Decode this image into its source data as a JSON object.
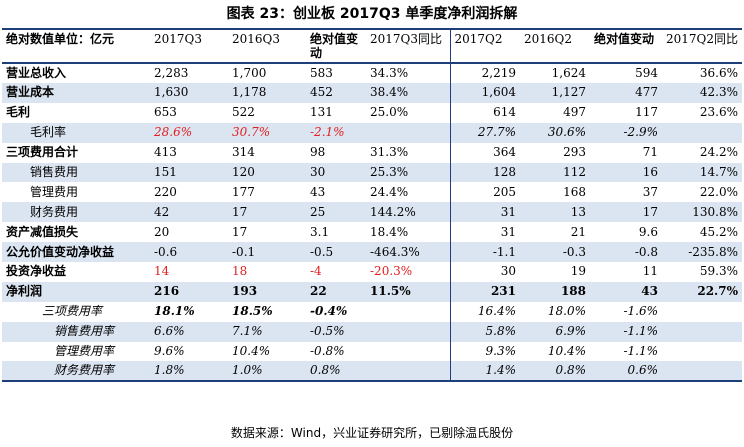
{
  "title": "图表 23：创业板 2017Q3 单季度净利润拆解",
  "headers": [
    "绝对数值单位：亿元",
    "2017Q3",
    "2016Q3",
    "绝对值变动",
    "2017Q3同比",
    "2017Q2",
    "2016Q2",
    "绝对值变动",
    "2017Q2同比"
  ],
  "rows": [
    {
      "label": "营业总收入",
      "cells": [
        "2,283",
        "1,700",
        "583",
        "34.3%",
        "2,219",
        "1,624",
        "594",
        "36.6%"
      ]
    },
    {
      "label": "营业成本",
      "cells": [
        "1,630",
        "1,178",
        "452",
        "38.4%",
        "1,604",
        "1,127",
        "477",
        "42.3%"
      ]
    },
    {
      "label": "毛利",
      "cells": [
        "653",
        "522",
        "131",
        "25.0%",
        "614",
        "497",
        "117",
        "23.6%"
      ]
    },
    {
      "label": "毛利率",
      "cells": [
        "28.6%",
        "30.7%",
        "-2.1%",
        "",
        "27.7%",
        "30.6%",
        "-2.9%",
        ""
      ]
    },
    {
      "label": "三项费用合计",
      "cells": [
        "413",
        "314",
        "98",
        "31.3%",
        "364",
        "293",
        "71",
        "24.2%"
      ]
    },
    {
      "label": "销售费用",
      "cells": [
        "151",
        "120",
        "30",
        "25.3%",
        "128",
        "112",
        "16",
        "14.7%"
      ]
    },
    {
      "label": "管理费用",
      "cells": [
        "220",
        "177",
        "43",
        "24.4%",
        "205",
        "168",
        "37",
        "22.0%"
      ]
    },
    {
      "label": "财务费用",
      "cells": [
        "42",
        "17",
        "25",
        "144.2%",
        "31",
        "13",
        "17",
        "130.8%"
      ]
    },
    {
      "label": "资产减值损失",
      "cells": [
        "20",
        "17",
        "3.1",
        "18.4%",
        "31",
        "21",
        "9.6",
        "45.2%"
      ]
    },
    {
      "label": "公允价值变动净收益",
      "cells": [
        "-0.6",
        "-0.1",
        "-0.5",
        "-464.3%",
        "-1.1",
        "-0.3",
        "-0.8",
        "-235.8%"
      ]
    },
    {
      "label": "投资净收益",
      "cells": [
        "14",
        "18",
        "-4",
        "-20.3%",
        "30",
        "19",
        "11",
        "59.3%"
      ]
    },
    {
      "label": "净利润",
      "cells": [
        "216",
        "193",
        "22",
        "11.5%",
        "231",
        "188",
        "43",
        "22.7%"
      ]
    },
    {
      "label": "三项费用率",
      "cells": [
        "18.1%",
        "18.5%",
        "-0.4%",
        "",
        "16.4%",
        "18.0%",
        "-1.6%",
        ""
      ]
    },
    {
      "label": "销售费用率",
      "cells": [
        "6.6%",
        "7.1%",
        "-0.5%",
        "",
        "5.8%",
        "6.9%",
        "-1.1%",
        ""
      ]
    },
    {
      "label": "管理费用率",
      "cells": [
        "9.6%",
        "10.4%",
        "-0.8%",
        "",
        "9.3%",
        "10.4%",
        "-1.1%",
        ""
      ]
    },
    {
      "label": "财务费用率",
      "cells": [
        "1.8%",
        "1.0%",
        "0.8%",
        "",
        "1.4%",
        "0.8%",
        "0.6%",
        ""
      ]
    }
  ],
  "source": "数据来源：Wind，兴业证券研究所，已剔除温氏股份",
  "colors": {
    "accent": "#1f3f7a",
    "band": "#dbe4f1",
    "highlight": "#e02020"
  }
}
